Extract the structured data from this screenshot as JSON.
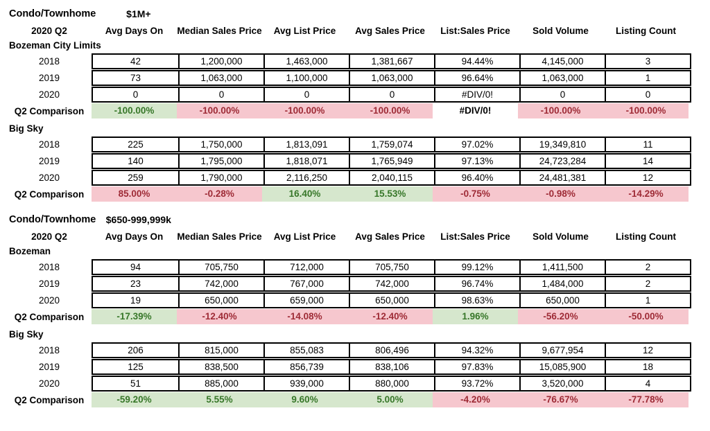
{
  "colors": {
    "good_fill": "#d6e7cd",
    "good_text": "#377729",
    "bad_fill": "#f6c7ce",
    "bad_text": "#9e2b36",
    "border": "#000000"
  },
  "chart_data": [
    {
      "type": "table",
      "property_type": "Condo/Townhome",
      "price_range": "$1M+",
      "period": "2020 Q2",
      "comparison_label": "Q2 Comparison",
      "columns": [
        "Avg Days On",
        "Median Sales Price",
        "Avg List Price",
        "Avg Sales Price",
        "List:Sales Price",
        "Sold Volume",
        "Listing Count"
      ],
      "groups": [
        {
          "name": "Bozeman City Limits",
          "rows": [
            [
              "2018",
              "42",
              "1,200,000",
              "1,463,000",
              "1,381,667",
              "94.44%",
              "4,145,000",
              "3"
            ],
            [
              "2019",
              "73",
              "1,063,000",
              "1,100,000",
              "1,063,000",
              "96.64%",
              "1,063,000",
              "1"
            ],
            [
              "2020",
              "0",
              "0",
              "0",
              "0",
              "#DIV/0!",
              "0",
              "0"
            ]
          ],
          "comparison": {
            "values": [
              "-100.00%",
              "-100.00%",
              "-100.00%",
              "-100.00%",
              "#DIV/0!",
              "-100.00%",
              "-100.00%"
            ],
            "states": [
              "good",
              "bad",
              "bad",
              "bad",
              "none",
              "bad",
              "bad"
            ]
          }
        },
        {
          "name": "Big Sky",
          "rows": [
            [
              "2018",
              "225",
              "1,750,000",
              "1,813,091",
              "1,759,074",
              "97.02%",
              "19,349,810",
              "11"
            ],
            [
              "2019",
              "140",
              "1,795,000",
              "1,818,071",
              "1,765,949",
              "97.13%",
              "24,723,284",
              "14"
            ],
            [
              "2020",
              "259",
              "1,790,000",
              "2,116,250",
              "2,040,115",
              "96.40%",
              "24,481,381",
              "12"
            ]
          ],
          "comparison": {
            "values": [
              "85.00%",
              "-0.28%",
              "16.40%",
              "15.53%",
              "-0.75%",
              "-0.98%",
              "-14.29%"
            ],
            "states": [
              "bad",
              "bad",
              "good",
              "good",
              "bad",
              "bad",
              "bad"
            ]
          }
        }
      ]
    },
    {
      "type": "table",
      "property_type": "Condo/Townhome",
      "price_range": "$650-999,999k",
      "period": "2020 Q2",
      "comparison_label": "Q2 Comparison",
      "columns": [
        "Avg Days On",
        "Median Sales Price",
        "Avg List Price",
        "Avg Sales Price",
        "List:Sales Price",
        "Sold Volume",
        "Listing Count"
      ],
      "groups": [
        {
          "name": "Bozeman",
          "rows": [
            [
              "2018",
              "94",
              "705,750",
              "712,000",
              "705,750",
              "99.12%",
              "1,411,500",
              "2"
            ],
            [
              "2019",
              "23",
              "742,000",
              "767,000",
              "742,000",
              "96.74%",
              "1,484,000",
              "2"
            ],
            [
              "2020",
              "19",
              "650,000",
              "659,000",
              "650,000",
              "98.63%",
              "650,000",
              "1"
            ]
          ],
          "comparison": {
            "values": [
              "-17.39%",
              "-12.40%",
              "-14.08%",
              "-12.40%",
              "1.96%",
              "-56.20%",
              "-50.00%"
            ],
            "states": [
              "good",
              "bad",
              "bad",
              "bad",
              "good",
              "bad",
              "bad"
            ]
          }
        },
        {
          "name": "Big Sky",
          "rows": [
            [
              "2018",
              "206",
              "815,000",
              "855,083",
              "806,496",
              "94.32%",
              "9,677,954",
              "12"
            ],
            [
              "2019",
              "125",
              "838,500",
              "856,739",
              "838,106",
              "97.83%",
              "15,085,900",
              "18"
            ],
            [
              "2020",
              "51",
              "885,000",
              "939,000",
              "880,000",
              "93.72%",
              "3,520,000",
              "4"
            ]
          ],
          "comparison": {
            "values": [
              "-59.20%",
              "5.55%",
              "9.60%",
              "5.00%",
              "-4.20%",
              "-76.67%",
              "-77.78%"
            ],
            "states": [
              "good",
              "good",
              "good",
              "good",
              "bad",
              "bad",
              "bad"
            ]
          }
        }
      ]
    }
  ]
}
